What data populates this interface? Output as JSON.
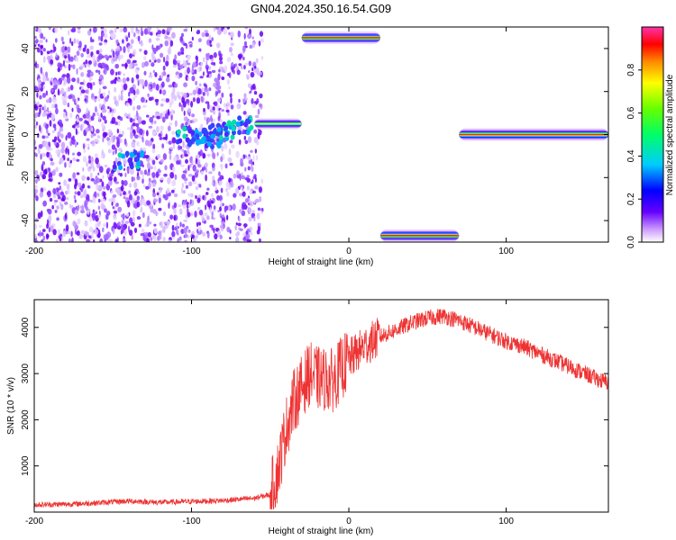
{
  "title": "GN04.2024.350.16.54.G09",
  "chart_data": [
    {
      "type": "heatmap",
      "xlabel": "Height of straight line (km)",
      "ylabel": "Frequency (Hz)",
      "xlim": [
        -200,
        165
      ],
      "ylim": [
        -50,
        50
      ],
      "xticks": [
        -200,
        -100,
        0,
        100
      ],
      "yticks": [
        -40,
        -20,
        0,
        20,
        40
      ],
      "colorbar": {
        "label": "Normalized spectral amplitude",
        "ticks": [
          0.0,
          0.2,
          0.4,
          0.6,
          0.8
        ],
        "tick_labels": [
          "0.0",
          "0.2",
          "0.4",
          "0.6",
          "0.8"
        ],
        "range": [
          0,
          1
        ]
      },
      "tracks": [
        {
          "x_start": -30,
          "x_end": 20,
          "y": 45,
          "amplitude": 0.95
        },
        {
          "x_start": -60,
          "x_end": -30,
          "y": 5,
          "amplitude": 0.45
        },
        {
          "x_start": 20,
          "x_end": 70,
          "y": -47,
          "amplitude": 0.95
        },
        {
          "x_start": 70,
          "x_end": 165,
          "y": 0,
          "amplitude": 0.95
        }
      ],
      "noise_region": {
        "x_start": -200,
        "x_end": -55,
        "y_start": -50,
        "y_end": 50
      }
    },
    {
      "type": "line",
      "xlabel": "Height of straight line (km)",
      "ylabel": "SNR (10 * v/v)",
      "xlim": [
        -200,
        165
      ],
      "ylim": [
        0,
        4600
      ],
      "xticks": [
        -200,
        -100,
        0,
        100
      ],
      "yticks": [
        1000,
        2000,
        3000,
        4000
      ],
      "color": "#ee3333",
      "series": [
        {
          "points": [
            [
              -200,
              160
            ],
            [
              -180,
              170
            ],
            [
              -160,
              200
            ],
            [
              -140,
              240
            ],
            [
              -120,
              210
            ],
            [
              -100,
              230
            ],
            [
              -80,
              250
            ],
            [
              -60,
              300
            ],
            [
              -50,
              380
            ],
            [
              -45,
              900
            ],
            [
              -40,
              1800
            ],
            [
              -35,
              2400
            ],
            [
              -30,
              2700
            ],
            [
              -25,
              3000
            ],
            [
              -20,
              2900
            ],
            [
              -10,
              2850
            ],
            [
              -5,
              3100
            ],
            [
              0,
              3300
            ],
            [
              10,
              3600
            ],
            [
              20,
              3800
            ],
            [
              30,
              3950
            ],
            [
              40,
              4100
            ],
            [
              50,
              4200
            ],
            [
              60,
              4250
            ],
            [
              70,
              4150
            ],
            [
              80,
              4000
            ],
            [
              90,
              3850
            ],
            [
              100,
              3700
            ],
            [
              110,
              3600
            ],
            [
              120,
              3450
            ],
            [
              130,
              3300
            ],
            [
              140,
              3150
            ],
            [
              150,
              3000
            ],
            [
              160,
              2850
            ],
            [
              165,
              2800
            ]
          ]
        }
      ]
    }
  ]
}
